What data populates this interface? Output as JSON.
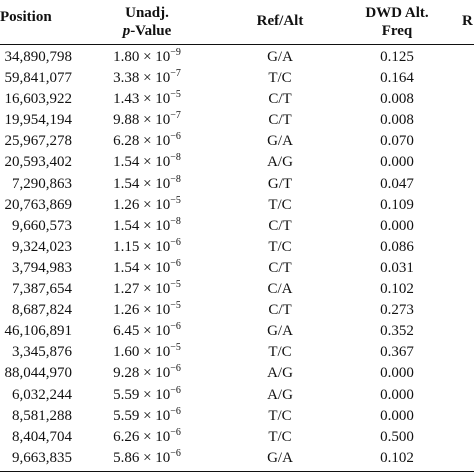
{
  "table": {
    "headers": {
      "position": "Position",
      "pvalue_line1": "Unadj.",
      "pvalue_var": "p",
      "pvalue_line2_rest": "-Value",
      "refalt": "Ref/Alt",
      "freq_line1": "DWD Alt.",
      "freq_line2": "Freq",
      "cut_off_next": "R"
    },
    "rows": [
      {
        "position": "34,890,798",
        "mantissa": "1.80",
        "exponent": "−9",
        "refalt": "G/A",
        "freq": "0.125"
      },
      {
        "position": "59,841,077",
        "mantissa": "3.38",
        "exponent": "−7",
        "refalt": "T/C",
        "freq": "0.164"
      },
      {
        "position": "16,603,922",
        "mantissa": "1.43",
        "exponent": "−5",
        "refalt": "C/T",
        "freq": "0.008"
      },
      {
        "position": "19,954,194",
        "mantissa": "9.88",
        "exponent": "−7",
        "refalt": "C/T",
        "freq": "0.008"
      },
      {
        "position": "25,967,278",
        "mantissa": "6.28",
        "exponent": "−6",
        "refalt": "G/A",
        "freq": "0.070"
      },
      {
        "position": "20,593,402",
        "mantissa": "1.54",
        "exponent": "−8",
        "refalt": "A/G",
        "freq": "0.000"
      },
      {
        "position": "7,290,863",
        "mantissa": "1.54",
        "exponent": "−8",
        "refalt": "G/T",
        "freq": "0.047"
      },
      {
        "position": "20,763,869",
        "mantissa": "1.26",
        "exponent": "−5",
        "refalt": "T/C",
        "freq": "0.109"
      },
      {
        "position": "9,660,573",
        "mantissa": "1.54",
        "exponent": "−8",
        "refalt": "C/T",
        "freq": "0.000"
      },
      {
        "position": "9,324,023",
        "mantissa": "1.15",
        "exponent": "−6",
        "refalt": "T/C",
        "freq": "0.086"
      },
      {
        "position": "3,794,983",
        "mantissa": "1.54",
        "exponent": "−6",
        "refalt": "C/T",
        "freq": "0.031"
      },
      {
        "position": "7,387,654",
        "mantissa": "1.27",
        "exponent": "−5",
        "refalt": "C/A",
        "freq": "0.102"
      },
      {
        "position": "8,687,824",
        "mantissa": "1.26",
        "exponent": "−5",
        "refalt": "C/T",
        "freq": "0.273"
      },
      {
        "position": "46,106,891",
        "mantissa": "6.45",
        "exponent": "−6",
        "refalt": "G/A",
        "freq": "0.352"
      },
      {
        "position": "3,345,876",
        "mantissa": "1.60",
        "exponent": "−5",
        "refalt": "T/C",
        "freq": "0.367"
      },
      {
        "position": "88,044,970",
        "mantissa": "9.28",
        "exponent": "−6",
        "refalt": "A/G",
        "freq": "0.000"
      },
      {
        "position": "6,032,244",
        "mantissa": "5.59",
        "exponent": "−6",
        "refalt": "A/G",
        "freq": "0.000"
      },
      {
        "position": "8,581,288",
        "mantissa": "5.59",
        "exponent": "−6",
        "refalt": "T/C",
        "freq": "0.000"
      },
      {
        "position": "8,404,704",
        "mantissa": "6.26",
        "exponent": "−6",
        "refalt": "T/C",
        "freq": "0.500"
      },
      {
        "position": "9,663,835",
        "mantissa": "5.86",
        "exponent": "−6",
        "refalt": "G/A",
        "freq": "0.102"
      }
    ]
  }
}
